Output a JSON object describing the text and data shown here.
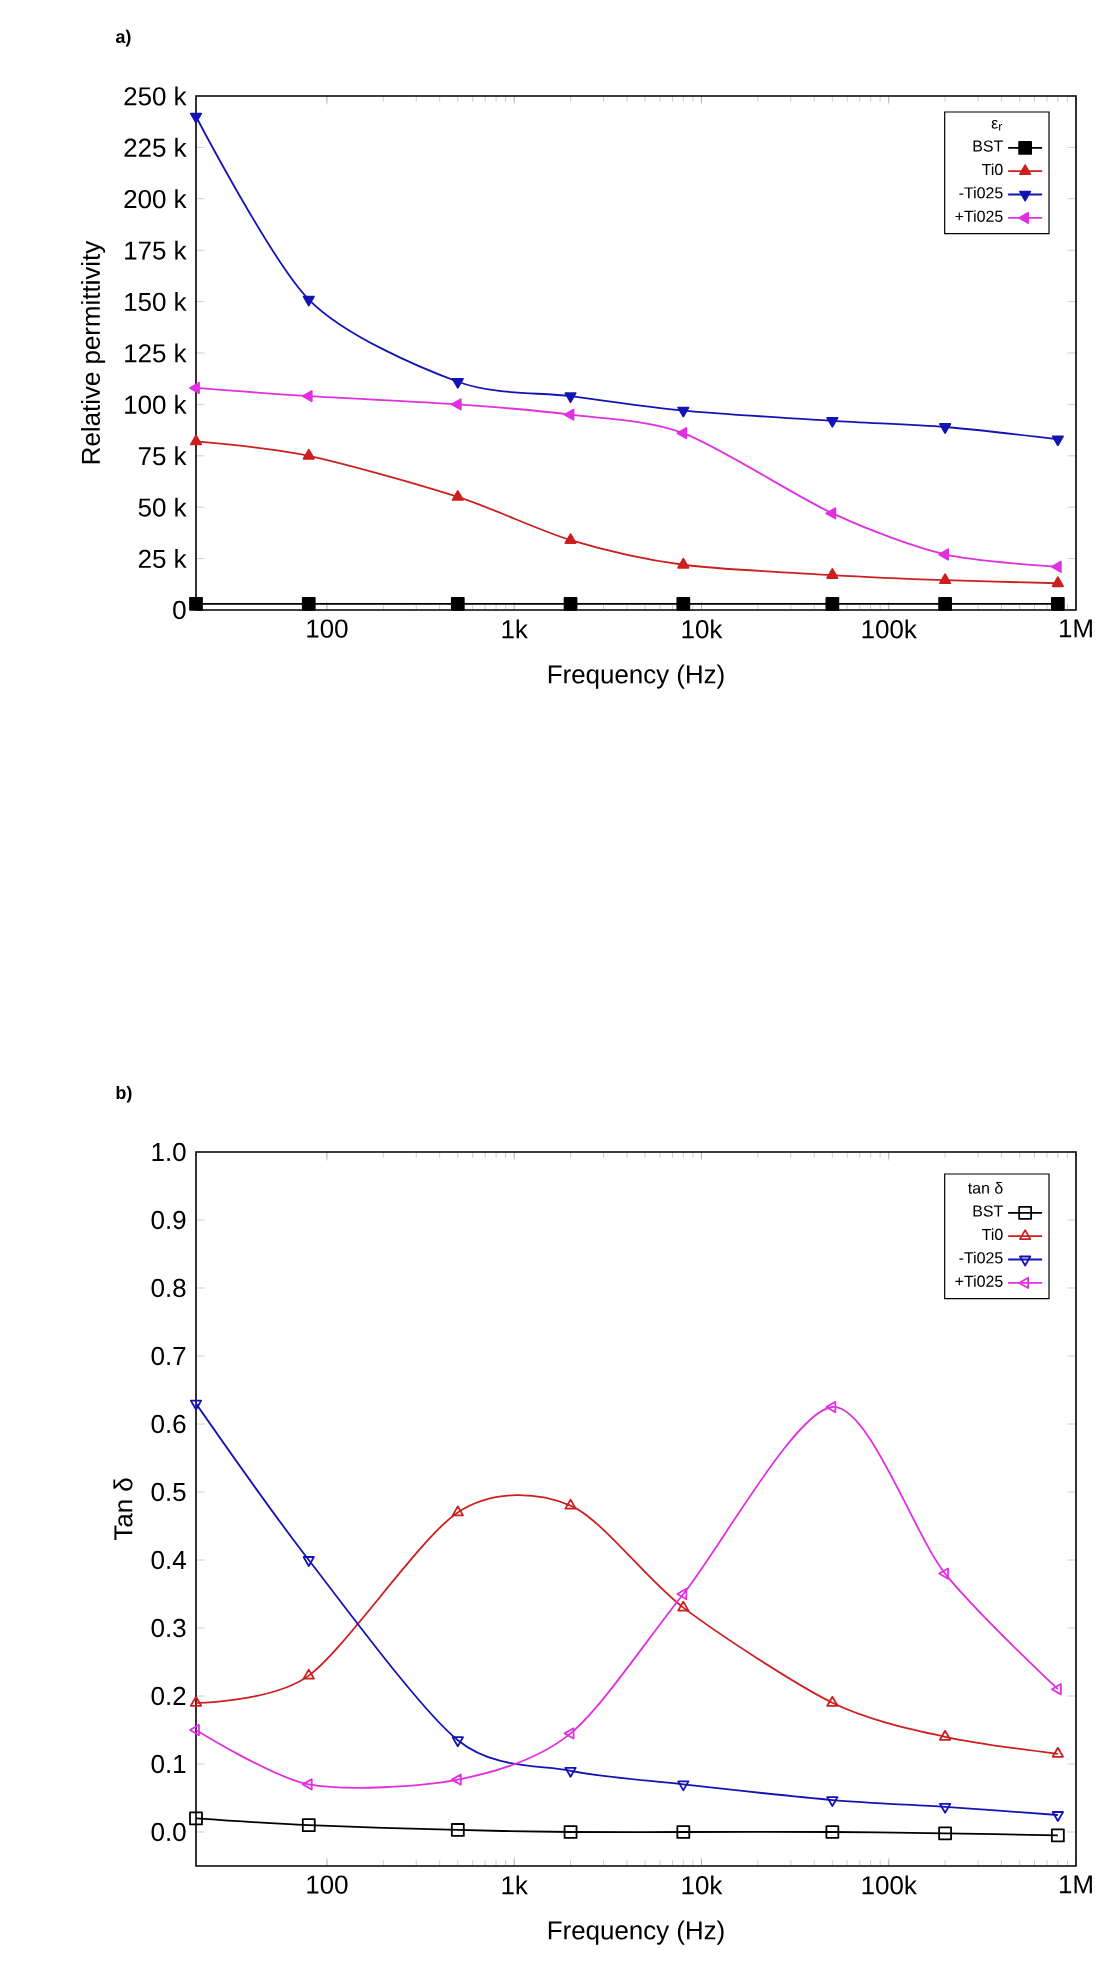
{
  "chart_data": [
    {
      "type": "line",
      "title": "a)",
      "xlabel": "Frequency (Hz)",
      "ylabel": "Relative permittivity",
      "legend_title": "ε$_{r}$",
      "log": "x",
      "legend": "top right",
      "line_style": "solid",
      "x": [
        20,
        80,
        500,
        2000,
        8000,
        50000,
        200000,
        800000
      ],
      "xlim": [
        20,
        1000000
      ],
      "ylim": [
        0,
        250000
      ],
      "xticks": [
        100,
        {
          "value": 1000,
          "label": "1k"
        },
        {
          "value": 10000,
          "label": "10k"
        },
        {
          "value": 100000,
          "label": "100k"
        },
        {
          "value": 1000000,
          "label": "1M"
        }
      ],
      "yticks": [
        0,
        {
          "value": 25000,
          "label": "25 k"
        },
        {
          "value": 50000,
          "label": "50 k"
        },
        {
          "value": 75000,
          "label": "75 k"
        },
        {
          "value": 100000,
          "label": "100 k"
        },
        {
          "value": 125000,
          "label": "125 k"
        },
        {
          "value": 150000,
          "label": "150 k"
        },
        {
          "value": 175000,
          "label": "175 k"
        },
        {
          "value": 200000,
          "label": "200 k"
        },
        {
          "value": 225000,
          "label": "225 k"
        },
        {
          "value": 250000,
          "label": "250 k"
        }
      ],
      "series": [
        {
          "name": "BST",
          "color": "#000000",
          "marker": "square",
          "values": [
            3000,
            3000,
            3000,
            3000,
            3000,
            3000,
            3000,
            3000
          ]
        },
        {
          "name": "Ti0",
          "color": "#cc1f1f",
          "marker": "triangle",
          "values": [
            82000,
            75000,
            55000,
            34000,
            22000,
            17000,
            14500,
            13000
          ]
        },
        {
          "name": "-Ti025",
          "color": "#1414b4",
          "marker": "triangle-down",
          "values": [
            240000,
            151000,
            111000,
            104000,
            97000,
            92000,
            89000,
            83000
          ]
        },
        {
          "name": "+Ti025",
          "color": "#e030e0",
          "marker": "triangle-left",
          "values": [
            108000,
            104000,
            100000,
            95000,
            86000,
            47000,
            27000,
            21000
          ]
        }
      ]
    },
    {
      "type": "line",
      "title": "b)",
      "xlabel": "Frequency (Hz)",
      "ylabel": "Tan δ",
      "legend_title": "tan δ",
      "log": "x",
      "legend": "top right",
      "line_style": "solid",
      "x": [
        20,
        80,
        500,
        2000,
        8000,
        50000,
        200000,
        800000
      ],
      "xlim": [
        20,
        1000000
      ],
      "ylim": [
        -0.05,
        1.0
      ],
      "xticks": [
        100,
        {
          "value": 1000,
          "label": "1k"
        },
        {
          "value": 10000,
          "label": "10k"
        },
        {
          "value": 100000,
          "label": "100k"
        },
        {
          "value": 1000000,
          "label": "1M"
        }
      ],
      "yticks": [
        {
          "value": 0,
          "label": "0.0"
        },
        0.1,
        0.2,
        0.3,
        0.4,
        0.5,
        0.6,
        0.7,
        0.8,
        0.9,
        {
          "value": 1,
          "label": "1.0"
        }
      ],
      "series": [
        {
          "name": "BST",
          "color": "#000000",
          "marker": "square-open",
          "values": [
            0.02,
            0.01,
            0.003,
            0.0,
            0.0,
            0.0,
            -0.002,
            -0.005
          ]
        },
        {
          "name": "Ti0",
          "color": "#cc1f1f",
          "marker": "triangle-open",
          "values": [
            0.19,
            0.23,
            0.47,
            0.48,
            0.33,
            0.19,
            0.14,
            0.115
          ]
        },
        {
          "name": "-Ti025",
          "color": "#1414b4",
          "marker": "triangle-down-open",
          "values": [
            0.63,
            0.4,
            0.135,
            0.09,
            0.07,
            0.047,
            0.037,
            0.025
          ]
        },
        {
          "name": "+Ti025",
          "color": "#e030e0",
          "marker": "triangle-left-open",
          "values": [
            0.15,
            0.07,
            0.077,
            0.145,
            0.35,
            0.625,
            0.38,
            0.21
          ]
        }
      ]
    }
  ]
}
